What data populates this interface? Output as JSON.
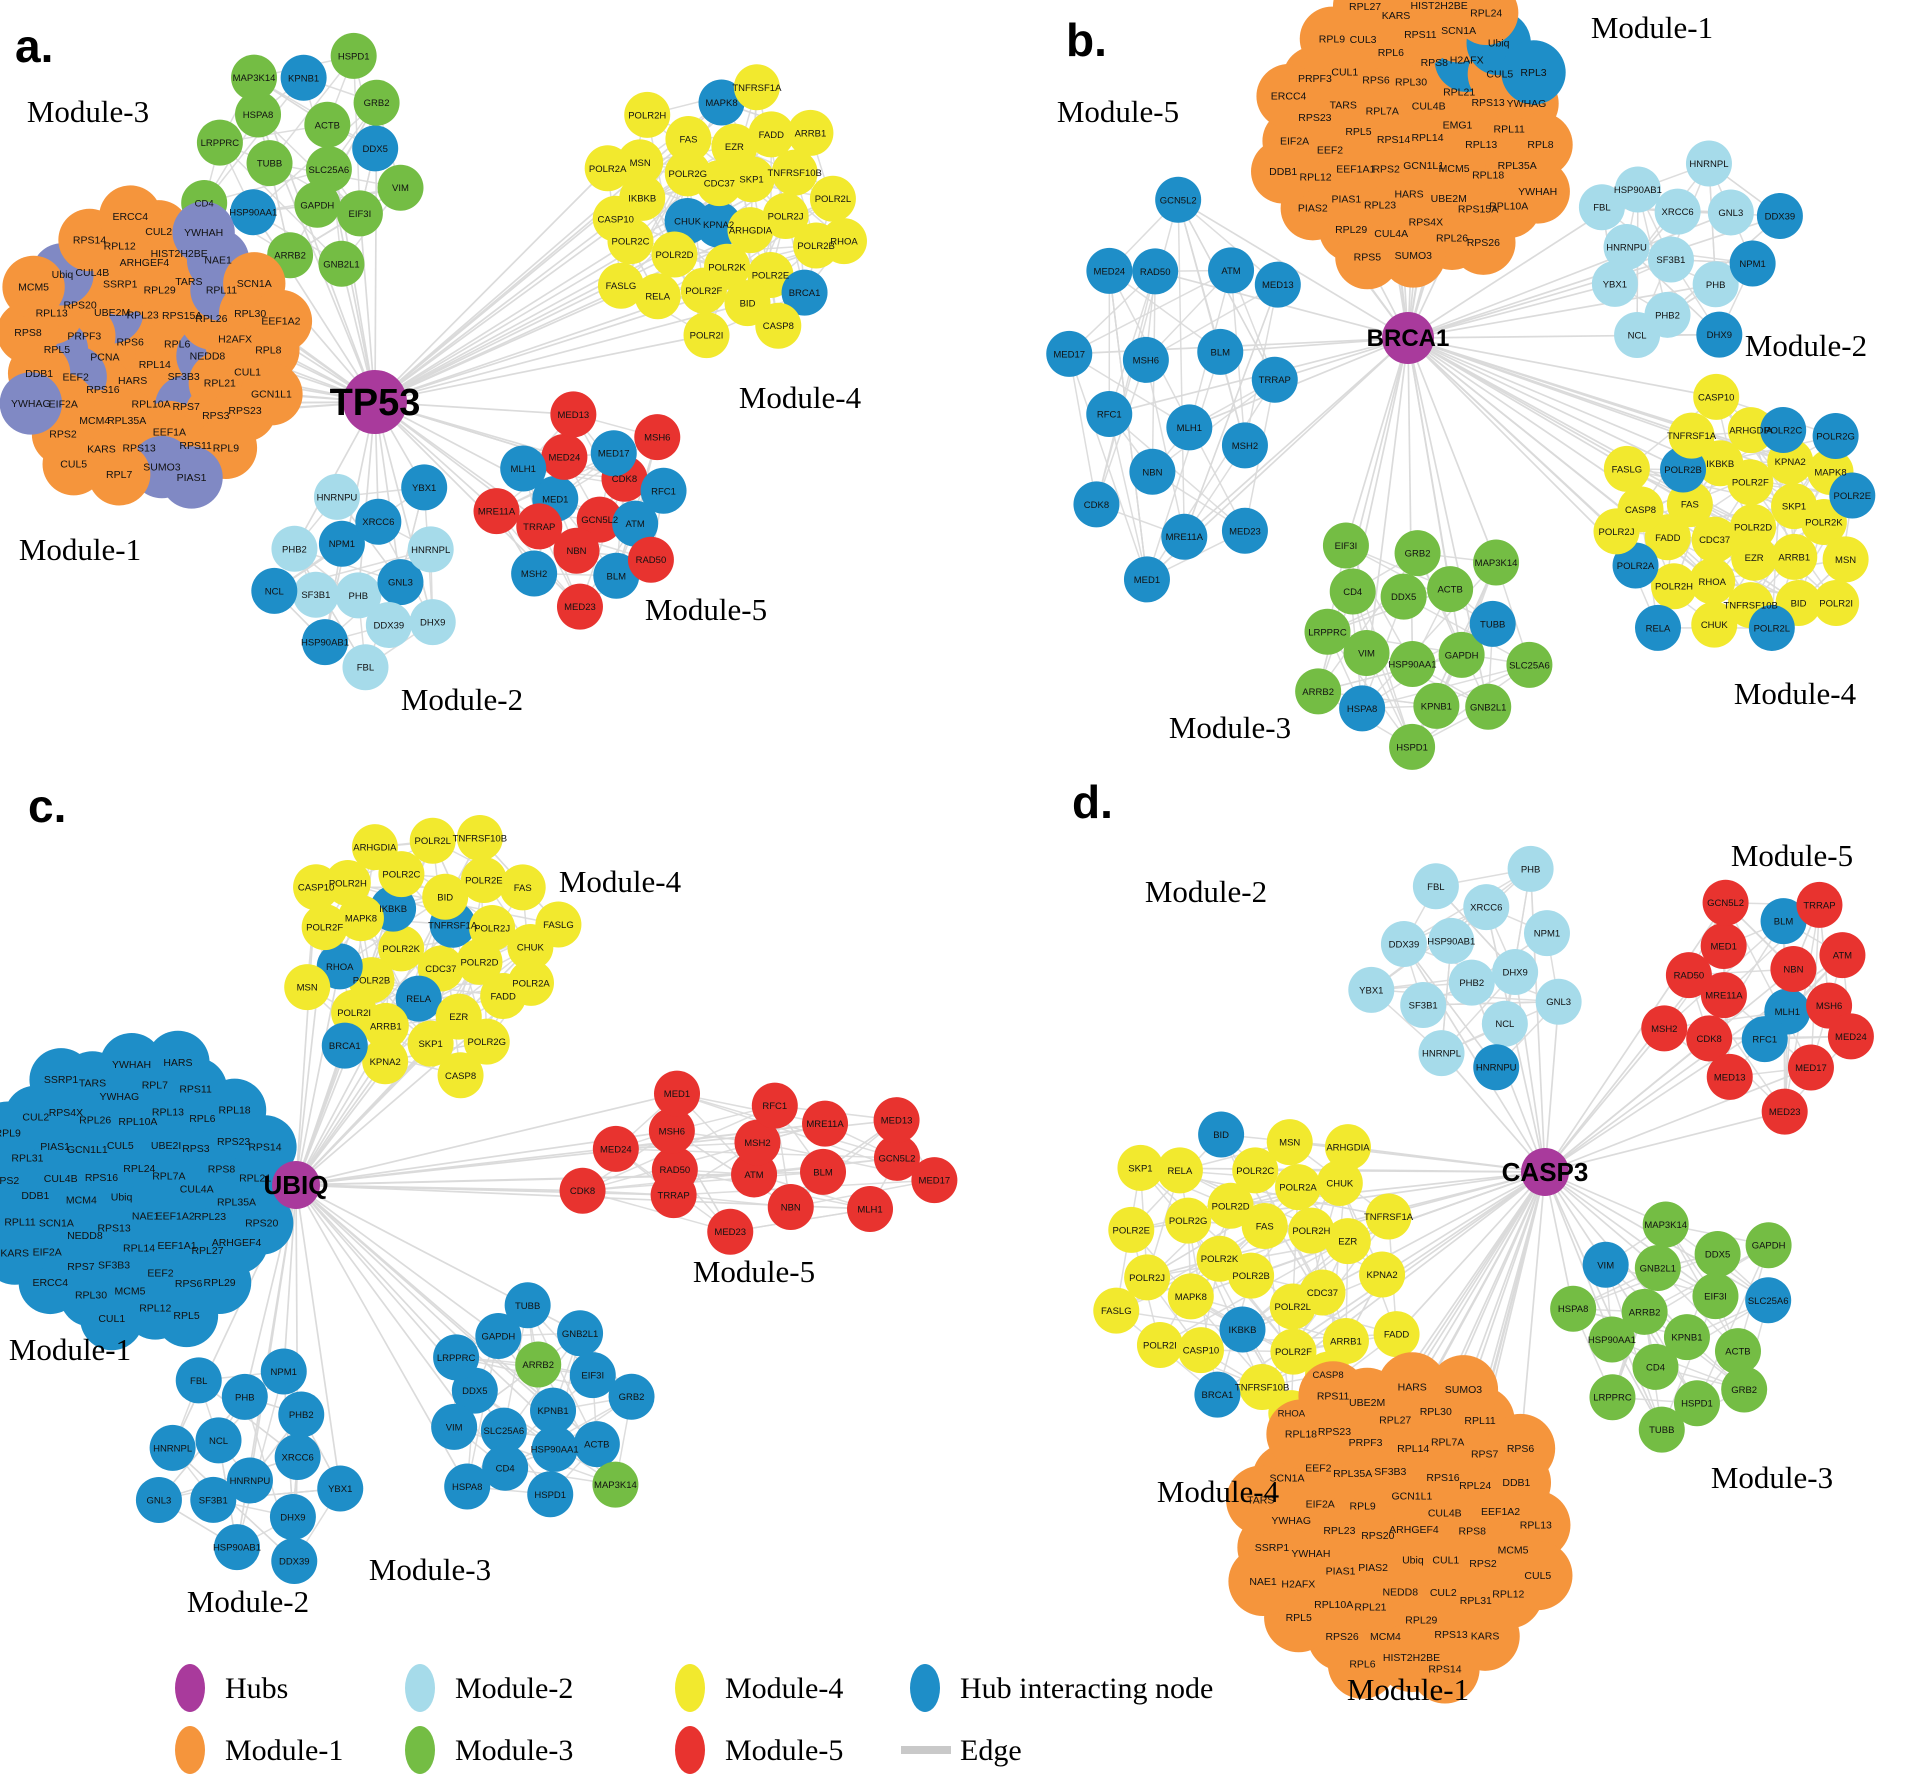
{
  "palette": {
    "hub": "#A93A9C",
    "m1": "#F5953C",
    "m2": "#A6DBEA",
    "m3": "#74BD44",
    "m4": "#F2E92E",
    "m5": "#E8332F",
    "hi": "#1E8EC8",
    "alt": "#8089C4",
    "edge": "#DADADA",
    "packed_bg": "#CDCDCD"
  },
  "legend": {
    "rows": [
      [
        {
          "label": "Hubs",
          "color": "hub",
          "type": "dot"
        },
        {
          "label": "Module-2",
          "color": "m2",
          "type": "dot"
        },
        {
          "label": "Module-4",
          "color": "m4",
          "type": "dot"
        },
        {
          "label": "Hub interacting node",
          "color": "hi",
          "type": "dot"
        }
      ],
      [
        {
          "label": "Module-1",
          "color": "m1",
          "type": "dot"
        },
        {
          "label": "Module-3",
          "color": "m3",
          "type": "dot"
        },
        {
          "label": "Module-5",
          "color": "m5",
          "type": "dot"
        },
        {
          "label": "Edge",
          "color": "edge",
          "type": "line"
        }
      ]
    ]
  },
  "panels": [
    {
      "id": "a",
      "letter": "a.",
      "hub": "TP53",
      "modules": [
        {
          "name": "Module-3",
          "default": "m3",
          "nodes": [
            "SLC25A6",
            "TUBB",
            "ACTB",
            "GAPDH",
            "HSPA8",
            "DDX5|hi",
            "HSP90AA1|hi",
            "KPNB1|hi",
            "EIF3I",
            "LRPPRC",
            "GRB2",
            "ARRB2",
            "MAP3K14",
            "VIM",
            "CD4",
            "HSPD1",
            "GNB2L1"
          ]
        },
        {
          "name": "Module-1",
          "default": "m1",
          "nodes": [
            "RPL14",
            "RPS6",
            "RPL6",
            "HARS",
            "RPL23",
            "SF3B3",
            "PCNA",
            "RPS15A",
            "RPL10A",
            "UBE2M|alt",
            "NEDD8|alt",
            "RPS16",
            "RPL29",
            "RPS7|alt",
            "PRPF3",
            "RPL26",
            "RPL35A",
            "SSRP1",
            "RPL21",
            "EEF2|alt",
            "TARS",
            "EEF1A",
            "RPS20",
            "H2AFX",
            "MCM4",
            "ARHGEF4",
            "RPS3",
            "RPL5|alt",
            "RPL11|alt",
            "RPS13",
            "CUL4B",
            "CUL1",
            "EIF2A",
            "HIST2H2BE",
            "RPS11",
            "RPL13",
            "RPL30",
            "KARS",
            "RPL12",
            "RPS23",
            "DDB1",
            "NAE1|alt",
            "SUMO3|alt",
            "Ubiq|alt",
            "RPL8",
            "RPS2",
            "CUL2",
            "RPL9",
            "RPS8",
            "SCN1A",
            "RPL7",
            "RPS14",
            "GCN1L1",
            "YWHAG|alt",
            "YWHAH|alt",
            "PIAS1|alt",
            "MCM5",
            "EEF1A2",
            "CUL5",
            "ERCC4"
          ]
        },
        {
          "name": "Module-4",
          "default": "m4",
          "nodes": [
            "KPNA2|hi",
            "CDC37",
            "ARHGDIA",
            "CHUK|hi",
            "SKP1",
            "POLR2K",
            "POLR2G",
            "POLR2J",
            "POLR2D",
            "EZR",
            "POLR2E",
            "IKBKB",
            "TNFRSF10B",
            "POLR2F",
            "FAS",
            "POLR2B",
            "POLR2C",
            "FADD",
            "BID",
            "MSN",
            "POLR2L",
            "RELA",
            "MAPK8|hi",
            "BRCA1|hi",
            "CASP10",
            "ARRB1",
            "POLR2I",
            "POLR2H",
            "RHOA",
            "FASLG",
            "TNFRSF1A",
            "CASP8",
            "POLR2A"
          ]
        },
        {
          "name": "Module-5",
          "default": "m5",
          "nodes": [
            "GCN5L2",
            "MED1|hi",
            "CDK8",
            "NBN",
            "MED24",
            "ATM|hi",
            "TRRAP",
            "MED17|hi",
            "BLM|hi",
            "MLH1|hi",
            "RFC1|hi",
            "MSH2|hi",
            "MED13",
            "RAD50",
            "MRE11A",
            "MSH6",
            "MED23"
          ]
        },
        {
          "name": "Module-2",
          "default": "m2",
          "nodes": [
            "PHB",
            "NPM1|hi",
            "GNL3|hi",
            "SF3B1",
            "XRCC6|hi",
            "DDX39",
            "PHB2",
            "HNRNPL",
            "HSP90AB1|hi",
            "HNRNPU",
            "DHX9",
            "NCL|hi",
            "YBX1|hi",
            "FBL"
          ]
        }
      ]
    },
    {
      "id": "b",
      "letter": "b.",
      "hub": "BRCA1",
      "modules": [
        {
          "name": "Module-1",
          "default": "m1",
          "nodes": [
            "RPL14",
            "RPS14",
            "CUL4B",
            "GCN1L1",
            "RPL7A",
            "EMG1",
            "RPS2",
            "RPL30",
            "MCM5",
            "RPL5",
            "RPL21",
            "HARS",
            "RPS6",
            "RPL13",
            "EEF1A1",
            "RPS8",
            "UBE2M",
            "TARS",
            "RPS13",
            "RPL23",
            "RPL6",
            "RPL18",
            "EEF2",
            "H2AFX|hi",
            "RPS4X",
            "CUL1",
            "RPL11",
            "PIAS1",
            "RPS11",
            "RPS15A",
            "RPS23",
            "CUL5",
            "CUL4A",
            "CUL3",
            "RPL35A",
            "RPL12",
            "SCN1A",
            "RPL26",
            "PRPF3",
            "YWHAG",
            "RPL29",
            "KARS",
            "RPL10A",
            "EIF2A",
            "Ubiq|hi",
            "SUMO3",
            "RPL9",
            "RPL8",
            "PIAS2",
            "HIST2H2BE",
            "RPS26",
            "ERCC4",
            "RPL3|hi",
            "RPS5",
            "RPL27",
            "YWHAH",
            "DDB1",
            "RPL24"
          ]
        },
        {
          "name": "Module-5",
          "default": "hi",
          "nodes": [
            "MLH1",
            "MSH6",
            "BLM",
            "NBN",
            "RAD50",
            "MSH2",
            "RFC1",
            "ATM",
            "MRE11A",
            "MED24",
            "TRRAP",
            "CDK8",
            "GCN5L2",
            "MED23",
            "MED17",
            "MED13",
            "MED1"
          ]
        },
        {
          "name": "Module-2",
          "default": "m2",
          "nodes": [
            "SF3B1",
            "XRCC6",
            "PHB",
            "HNRNPU",
            "GNL3",
            "PHB2",
            "HSP90AB1",
            "NPM1|hi",
            "YBX1",
            "HNRNPL",
            "DHX9|hi",
            "FBL",
            "DDX39|hi",
            "NCL"
          ]
        },
        {
          "name": "Module-4",
          "default": "m4",
          "nodes": [
            "POLR2D",
            "CDC37",
            "POLR2F",
            "EZR",
            "FAS",
            "SKP1",
            "RHOA",
            "IKBKB",
            "ARRB1",
            "FADD",
            "KPNA2",
            "TNFRSF10B",
            "POLR2B|hi",
            "POLR2K",
            "POLR2H",
            "ARHGDIA",
            "BID",
            "CASP8",
            "MAPK8",
            "CHUK",
            "TNFRSF1A",
            "MSN",
            "POLR2A|hi",
            "POLR2C|hi",
            "POLR2L|hi",
            "FASLG",
            "POLR2E|hi",
            "RELA|hi",
            "CASP10",
            "POLR2I",
            "POLR2J",
            "POLR2G|hi"
          ]
        },
        {
          "name": "Module-3",
          "default": "m3",
          "nodes": [
            "HSP90AA1",
            "DDX5",
            "GAPDH",
            "VIM",
            "ACTB",
            "KPNB1",
            "CD4",
            "TUBB|hi",
            "HSPA8|hi",
            "GRB2",
            "GNB2L1",
            "LRPPRC",
            "MAP3K14",
            "HSPD1",
            "EIF3I",
            "SLC25A6",
            "ARRB2"
          ]
        }
      ]
    },
    {
      "id": "c",
      "letter": "c.",
      "hub": "UBIQ",
      "modules": [
        {
          "name": "Module-4",
          "default": "m4",
          "nodes": [
            "CDC37",
            "POLR2K",
            "TNFRSF1A|hi",
            "RELA|hi",
            "IKBKB|hi",
            "POLR2D",
            "POLR2B",
            "BID",
            "EZR",
            "MAPK8",
            "POLR2J",
            "ARRB1",
            "POLR2C",
            "FADD",
            "RHOA|hi",
            "POLR2E",
            "SKP1",
            "POLR2H",
            "CHUK",
            "POLR2I",
            "POLR2L",
            "POLR2G",
            "POLR2F",
            "FAS",
            "KPNA2",
            "ARHGDIA",
            "POLR2A",
            "MSN",
            "TNFRSF10B",
            "CASP8",
            "CASP10",
            "FASLG",
            "BRCA1|hi"
          ]
        },
        {
          "name": "Module-1",
          "default": "hi",
          "nodes": [
            "Ubiq|m1|star",
            "RPL24",
            "NAE1",
            "RPS16",
            "RPL7A",
            "RPS13",
            "CUL5",
            "EEF1A2",
            "MCM4",
            "UBE2I",
            "RPL14",
            "GCN1L1",
            "CUL4A",
            "NEDD8",
            "RPL10A",
            "EEF1A1",
            "CUL4B",
            "RPS3",
            "SF3B3",
            "RPL26",
            "RPL23",
            "SCN1A",
            "RPL13",
            "EEF2",
            "PIAS1",
            "RPS8",
            "RPS7",
            "YWHAG",
            "RPL27",
            "DDB1",
            "RPL6",
            "MCM5",
            "RPS4X",
            "RPL35A",
            "EIF2A",
            "RPL7",
            "RPS6",
            "RPL31",
            "RPS23",
            "RPL30",
            "TARS",
            "ARHGEF4",
            "RPL11",
            "RPS11",
            "RPL12",
            "CUL2",
            "RPL21",
            "ERCC4",
            "YWHAH",
            "RPL29",
            "RPS2",
            "RPL18",
            "CUL1",
            "SSRP1",
            "RPS20",
            "KARS",
            "HARS",
            "RPL5",
            "RPL9",
            "RPS14"
          ]
        },
        {
          "name": "Module-2",
          "default": "hi",
          "nodes": [
            "HNRNPU",
            "NCL",
            "XRCC6",
            "SF3B1",
            "PHB",
            "DHX9",
            "HNRNPL",
            "PHB2",
            "HSP90AB1",
            "FBL",
            "YBX1",
            "GNL3",
            "NPM1",
            "DDX39"
          ]
        },
        {
          "name": "Module-3",
          "default": "hi",
          "nodes": [
            "KPNB1",
            "SLC25A6",
            "ARRB2|m3",
            "HSP90AA1",
            "DDX5",
            "EIF3I",
            "CD4",
            "GAPDH",
            "ACTB",
            "VIM",
            "GNB2L1",
            "HSPD1",
            "LRPPRC",
            "GRB2",
            "HSPA8",
            "TUBB",
            "MAP3K14|m3"
          ]
        },
        {
          "name": "Module-5",
          "default": "m5",
          "nodes": [
            "ATM",
            "MSH2",
            "BLM",
            "RAD50",
            "MRE11A",
            "NBN",
            "MSH6",
            "GCN5L2",
            "TRRAP",
            "RFC1",
            "MLH1",
            "MED24",
            "MED13",
            "MED23",
            "MED1",
            "MED17",
            "CDK8"
          ]
        }
      ]
    },
    {
      "id": "d",
      "letter": "d.",
      "hub": "CASP3",
      "modules": [
        {
          "name": "Module-2",
          "default": "m2",
          "nodes": [
            "PHB2",
            "HSP90AB1",
            "DHX9",
            "SF3B1",
            "XRCC6",
            "NCL",
            "DDX39",
            "NPM1",
            "HNRNPL",
            "FBL",
            "GNL3",
            "YBX1",
            "PHB",
            "HNRNPU|hi"
          ]
        },
        {
          "name": "Module-5",
          "default": "m5",
          "nodes": [
            "MLH1|hi",
            "MRE11A",
            "NBN",
            "RFC1|hi",
            "MED1",
            "MSH6",
            "CDK8",
            "BLM|hi",
            "MED17",
            "RAD50",
            "ATM",
            "MED13",
            "GCN5L2",
            "MED24",
            "MSH2",
            "TRRAP",
            "MED23"
          ]
        },
        {
          "name": "Module-4",
          "default": "m4",
          "nodes": [
            "POLR2B",
            "FAS",
            "POLR2L",
            "POLR2K",
            "POLR2H",
            "IKBKB|hi",
            "POLR2D",
            "CDC37",
            "MAPK8",
            "POLR2A",
            "POLR2F",
            "POLR2G",
            "EZR",
            "CASP10",
            "POLR2C",
            "ARRB1",
            "POLR2J",
            "CHUK",
            "TNFRSF10B",
            "RELA",
            "KPNA2",
            "POLR2I",
            "MSN",
            "CASP8",
            "POLR2E",
            "TNFRSF1A",
            "BRCA1|hi",
            "BID|hi",
            "FADD",
            "FASLG",
            "ARHGDIA",
            "RHOA",
            "SKP1"
          ]
        },
        {
          "name": "Module-3",
          "default": "m3",
          "nodes": [
            "KPNB1",
            "ARRB2",
            "EIF3I",
            "CD4",
            "GNB2L1",
            "ACTB",
            "HSP90AA1",
            "DDX5",
            "HSPD1",
            "VIM|hi",
            "SLC25A6|hi",
            "LRPPRC",
            "MAP3K14",
            "GRB2",
            "HSPA8",
            "GAPDH",
            "TUBB"
          ]
        },
        {
          "name": "Module-1",
          "default": "m1",
          "nodes": [
            "ARHGEF4",
            "RPS20",
            "GCN1L1",
            "Ubiq",
            "RPL9",
            "CUL4B",
            "PIAS2",
            "SF3B3",
            "CUL1",
            "RPL23",
            "RPS16",
            "NEDD8",
            "RPL35A",
            "RPS8",
            "PIAS1",
            "RPL14",
            "CUL2",
            "EIF2A",
            "RPL24",
            "RPL21",
            "PRPF3",
            "RPS2",
            "YWHAH",
            "RPL7A",
            "RPL29",
            "EEF2",
            "EEF1A2",
            "RPL10A",
            "RPL27",
            "RPL31",
            "YWHAG",
            "RPS7",
            "MCM4",
            "RPS23",
            "MCM5",
            "H2AFX",
            "RPL30",
            "RPS13",
            "SCN1A",
            "DDB1",
            "RPS26",
            "UBE2M",
            "RPL12",
            "SSRP1",
            "RPL11",
            "HIST2H2BE",
            "RPL18",
            "RPL13",
            "RPL5",
            "HARS",
            "KARS",
            "TARS",
            "RPS6",
            "RPL6",
            "RPS11",
            "CUL5",
            "NAE1",
            "SUMO3",
            "RPS14"
          ]
        }
      ]
    }
  ]
}
